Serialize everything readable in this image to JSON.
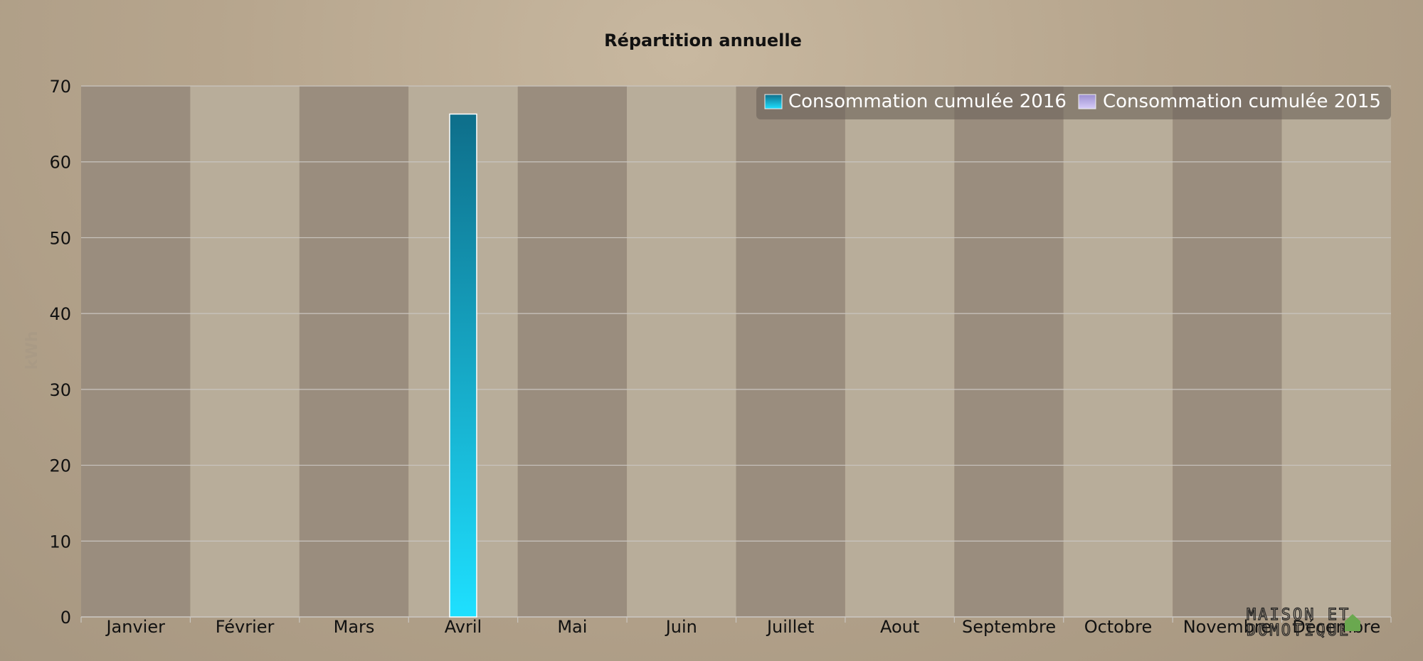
{
  "chart_data": {
    "type": "bar",
    "title": "Répartition annuelle",
    "ylabel": "kWh",
    "xlabel": "",
    "ylim": [
      0,
      70
    ],
    "yticks": [
      0,
      10,
      20,
      30,
      40,
      50,
      60,
      70
    ],
    "categories": [
      "Janvier",
      "Février",
      "Mars",
      "Avril",
      "Mai",
      "Juin",
      "Juillet",
      "Aout",
      "Septembre",
      "Octobre",
      "Novembre",
      "Décembre"
    ],
    "series": [
      {
        "name": "Consommation cumulée 2016",
        "values": [
          0,
          0,
          0,
          66.3,
          0,
          0,
          0,
          0,
          0,
          0,
          0,
          0
        ],
        "color_top": "#0e6e8a",
        "color_bottom": "#1ee0ff"
      },
      {
        "name": "Consommation cumulée 2015",
        "values": [
          0,
          0,
          0,
          0,
          0,
          0,
          0,
          0,
          0,
          0,
          0,
          0
        ],
        "color_top": "#9c8fd0",
        "color_bottom": "#d6ccf8"
      }
    ],
    "legend_position": "top-right",
    "band_colors": [
      "#9a8d7e",
      "#b8ad9a"
    ],
    "grid": true
  },
  "watermark": {
    "line1": "MAISON ET",
    "line2": "DOMOTIQUE"
  }
}
